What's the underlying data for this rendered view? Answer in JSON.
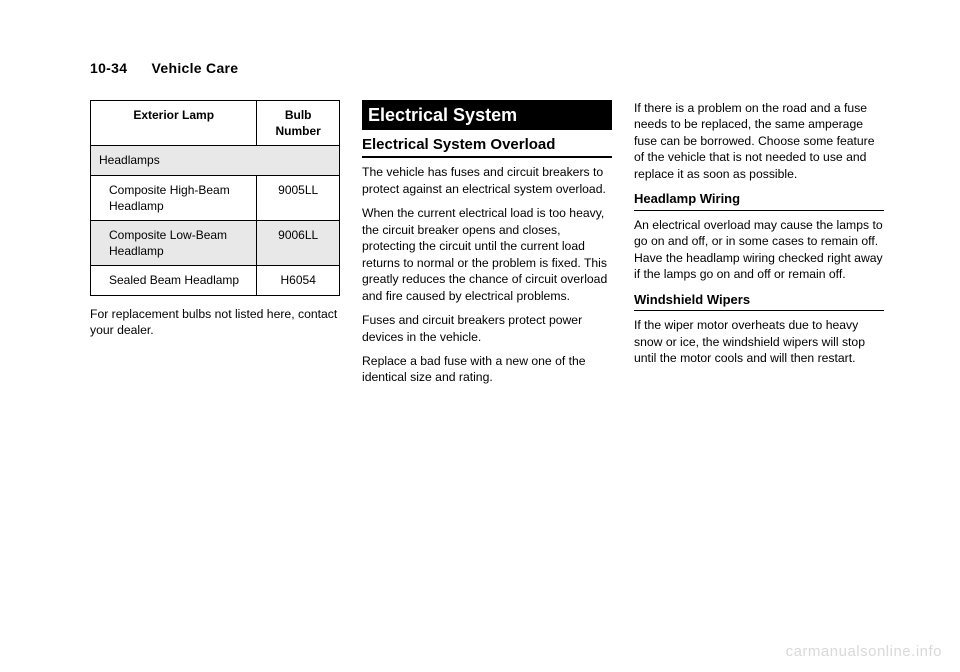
{
  "header": {
    "pagenum": "10-34",
    "section": "Vehicle Care"
  },
  "table": {
    "col1": "Exterior Lamp",
    "col2": "Bulb Number",
    "group": "Headlamps",
    "rows": [
      {
        "name": "Composite High-Beam Headlamp",
        "bulb": "9005LL"
      },
      {
        "name": "Composite Low-Beam Headlamp",
        "bulb": "9006LL"
      },
      {
        "name": "Sealed Beam Headlamp",
        "bulb": "H6054"
      }
    ],
    "note": "For replacement bulbs not listed here, contact your dealer."
  },
  "col2": {
    "title": "Electrical System",
    "sub": "Electrical System Overload",
    "p1": "The vehicle has fuses and circuit breakers to protect against an electrical system overload.",
    "p2": "When the current electrical load is too heavy, the circuit breaker opens and closes, protecting the circuit until the current load returns to normal or the problem is fixed. This greatly reduces the chance of circuit overload and fire caused by electrical problems.",
    "p3": "Fuses and circuit breakers protect power devices in the vehicle.",
    "p4": "Replace a bad fuse with a new one of the identical size and rating."
  },
  "col3": {
    "p1": "If there is a problem on the road and a fuse needs to be replaced, the same amperage fuse can be borrowed. Choose some feature of the vehicle that is not needed to use and replace it as soon as possible.",
    "h1": "Headlamp Wiring",
    "p2": "An electrical overload may cause the lamps to go on and off, or in some cases to remain off. Have the headlamp wiring checked right away if the lamps go on and off or remain off.",
    "h2": "Windshield Wipers",
    "p3": "If the wiper motor overheats due to heavy snow or ice, the windshield wipers will stop until the motor cools and will then restart."
  },
  "watermark": "carmanualsonline.info"
}
